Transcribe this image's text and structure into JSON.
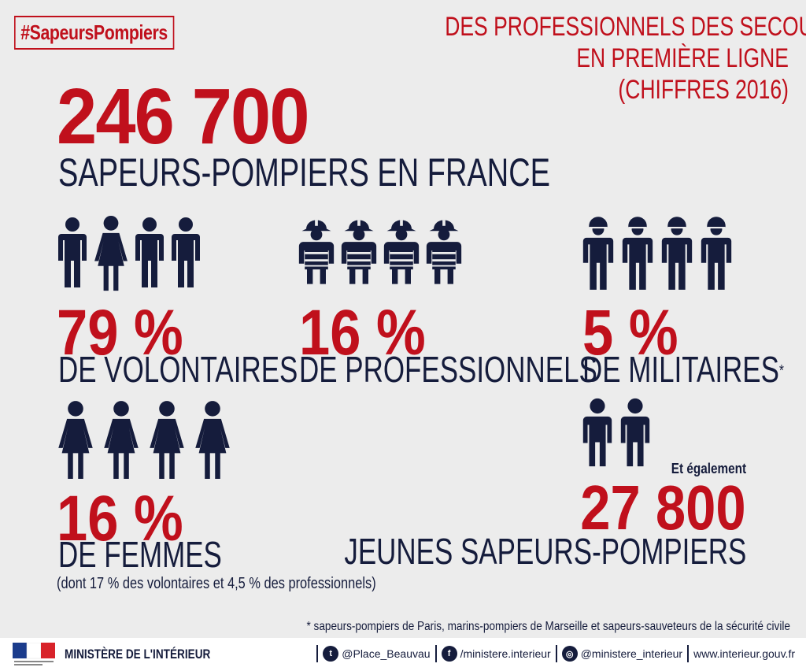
{
  "header": {
    "hashtag": "#SapeursPompiers",
    "title_lines": [
      "DES PROFESSIONNELS DES SECOURS",
      "EN PREMIÈRE LIGNE",
      "(CHIFFRES 2016)"
    ]
  },
  "total": {
    "number": "246 700",
    "caption": "SAPEURS-POMPIERS EN FRANCE"
  },
  "stats": [
    {
      "percent": "79 %",
      "label": "DE VOLONTAIRES",
      "icons": [
        "man-icon",
        "woman-icon",
        "man-icon",
        "man-icon"
      ]
    },
    {
      "percent": "16 %",
      "label": "DE PROFESSIONNELS",
      "icons": [
        "firefighter-icon",
        "firefighter-icon",
        "firefighter-icon",
        "firefighter-icon"
      ]
    },
    {
      "percent": "5 %",
      "label": "DE MILITAIRES",
      "footnote_mark": "*",
      "icons": [
        "soldier-icon",
        "soldier-icon",
        "soldier-icon",
        "soldier-icon"
      ]
    },
    {
      "percent": "16 %",
      "label": "DE FEMMES",
      "note": "(dont 17 % des volontaires et 4,5 % des professionnels)",
      "icons": [
        "woman-icon",
        "woman-icon",
        "woman-icon",
        "woman-icon"
      ]
    }
  ],
  "young": {
    "intro": "Et également",
    "number": "27 800",
    "label": "JEUNES SAPEURS-POMPIERS"
  },
  "footnote": "* sapeurs-pompiers de Paris, marins-pompiers de Marseille et sapeurs-sauveteurs de la sécurité civile",
  "footer": {
    "ministry": "MINISTÈRE DE L'INTÉRIEUR",
    "twitter": "@Place_Beauvau",
    "facebook": "/ministere.interieur",
    "instagram": "@ministere_interieur",
    "website": "www.interieur.gouv.fr"
  },
  "colors": {
    "accent": "#c0101c",
    "navy": "#151c3c",
    "background": "#ececec"
  }
}
